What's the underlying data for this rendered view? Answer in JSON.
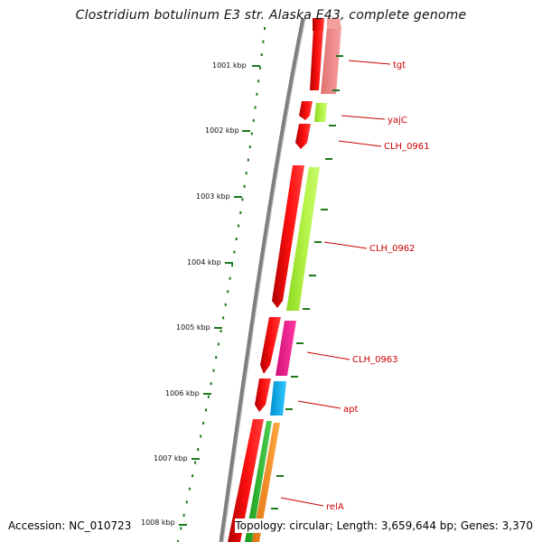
{
  "title": "Clostridium botulinum E3 str. Alaska E43, complete genome",
  "accession": "Accession: NC_010723",
  "summary": "Topology: circular; Length: 3,659,644 bp; Genes: 3,370",
  "colors": {
    "backbone": "#7f7f7f",
    "ticks": "#1a7a1a",
    "orf": "#ee0000",
    "orf_highlight": "#ff7070",
    "label_text": "#cc0000",
    "trna": "#f08080",
    "yajC": "#a8f040",
    "CLH_0962": "#a8f040",
    "CLH_0963": "#ff1493",
    "apt": "#00b4f0",
    "relA_green": "#30c030",
    "relA_orange": "#ff9020"
  },
  "kbp_labels": [
    {
      "kbp": 1001,
      "text": "1001 kbp"
    },
    {
      "kbp": 1002,
      "text": "1002 kbp"
    },
    {
      "kbp": 1003,
      "text": "1003 kbp"
    },
    {
      "kbp": 1004,
      "text": "1004 kbp"
    },
    {
      "kbp": 1005,
      "text": "1005 kbp"
    },
    {
      "kbp": 1006,
      "text": "1006 kbp"
    },
    {
      "kbp": 1007,
      "text": "1007 kbp"
    },
    {
      "kbp": 1008,
      "text": "1008 kbp"
    }
  ],
  "gene_labels": [
    {
      "name": "tgt",
      "text": "tgt"
    },
    {
      "name": "yajC",
      "text": "yajC"
    },
    {
      "name": "CLH_0961",
      "text": "CLH_0961"
    },
    {
      "name": "CLH_0962",
      "text": "CLH_0962"
    },
    {
      "name": "CLH_0963",
      "text": "CLH_0963"
    },
    {
      "name": "apt",
      "text": "apt"
    },
    {
      "name": "relA",
      "text": "relA"
    }
  ]
}
